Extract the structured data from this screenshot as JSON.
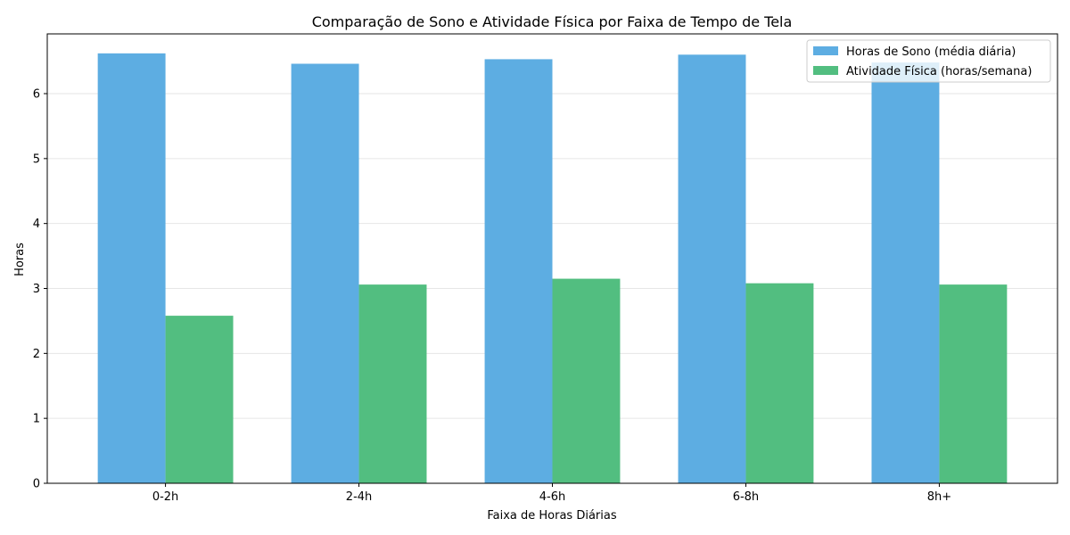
{
  "chart_data": {
    "type": "bar",
    "title": "Comparação de Sono e Atividade Física por Faixa de Tempo de Tela",
    "xlabel": "Faixa de Horas Diárias",
    "ylabel": "Horas",
    "categories": [
      "0-2h",
      "2-4h",
      "4-6h",
      "6-8h",
      "8h+"
    ],
    "series": [
      {
        "name": "Horas de Sono (média diária)",
        "color": "#5DADE2",
        "values": [
          6.62,
          6.46,
          6.53,
          6.6,
          6.48
        ]
      },
      {
        "name": "Atividade Física (horas/semana)",
        "color": "#52BE80",
        "values": [
          2.58,
          3.06,
          3.15,
          3.08,
          3.06
        ]
      }
    ],
    "ylim": [
      0,
      6.92
    ],
    "yticks": [
      0,
      1,
      2,
      3,
      4,
      5,
      6
    ],
    "grid": true,
    "legend_position": "top-right"
  }
}
